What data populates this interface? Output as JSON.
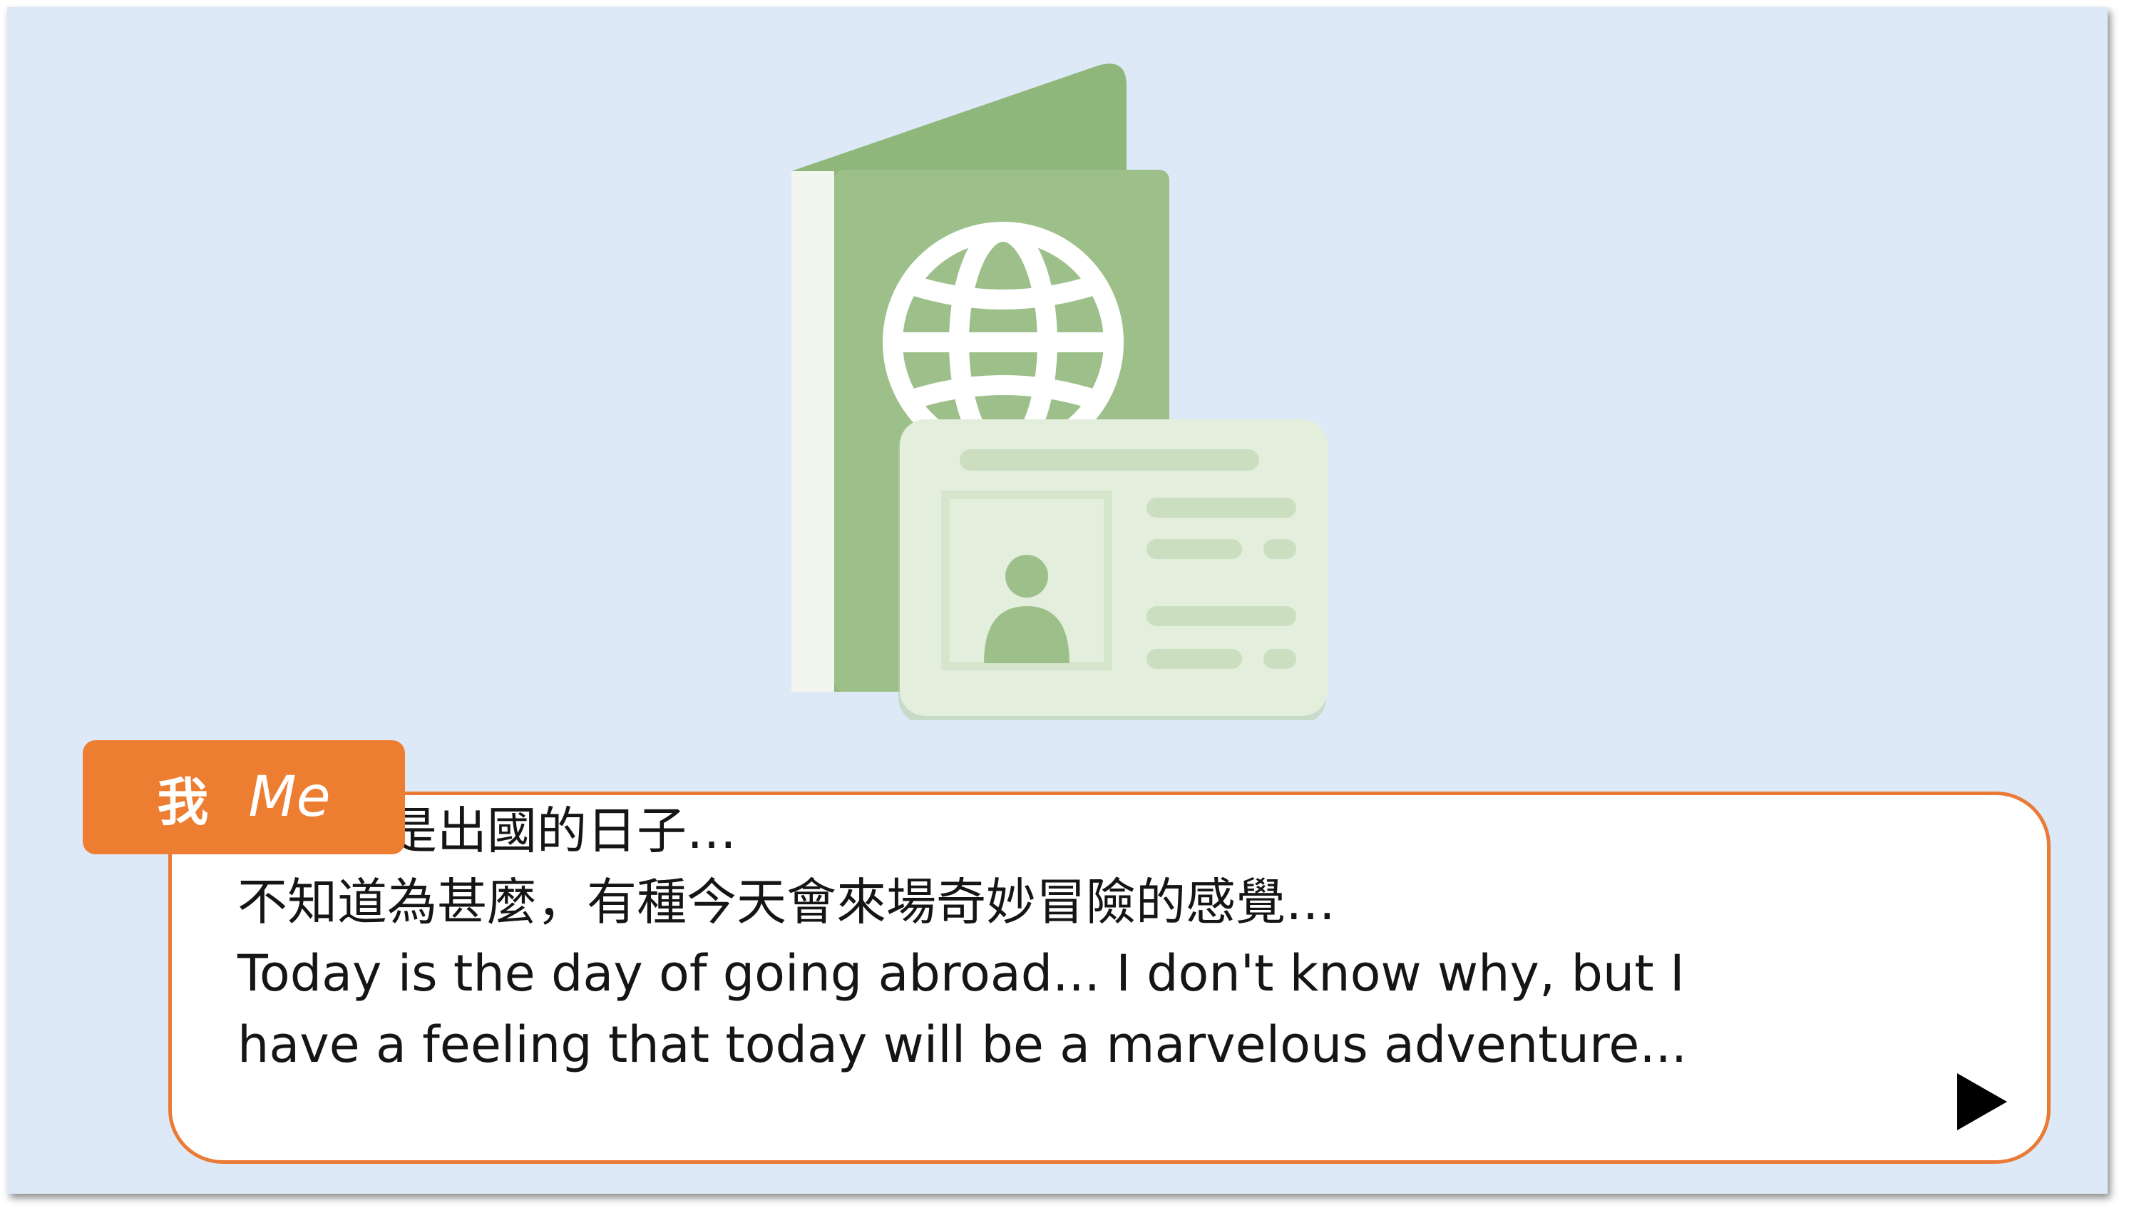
{
  "scene": {
    "illustration_icon": "passport-and-id-card-icon",
    "background_color": "#dde9f6"
  },
  "speaker": {
    "name_zh": "我",
    "name_en": "Me",
    "tag_color": "#ed7d31"
  },
  "dialogue": {
    "lines": [
      "今天就是出國的日子…",
      "不知道為甚麼，有種今天會來場奇妙冒險的感覺…",
      "Today is the day of going abroad... I don't know why, but I",
      "have a feeling that today will be a marvelous adventure..."
    ],
    "border_color": "#ea7a36"
  },
  "controls": {
    "next_icon": "play-triangle-icon"
  }
}
